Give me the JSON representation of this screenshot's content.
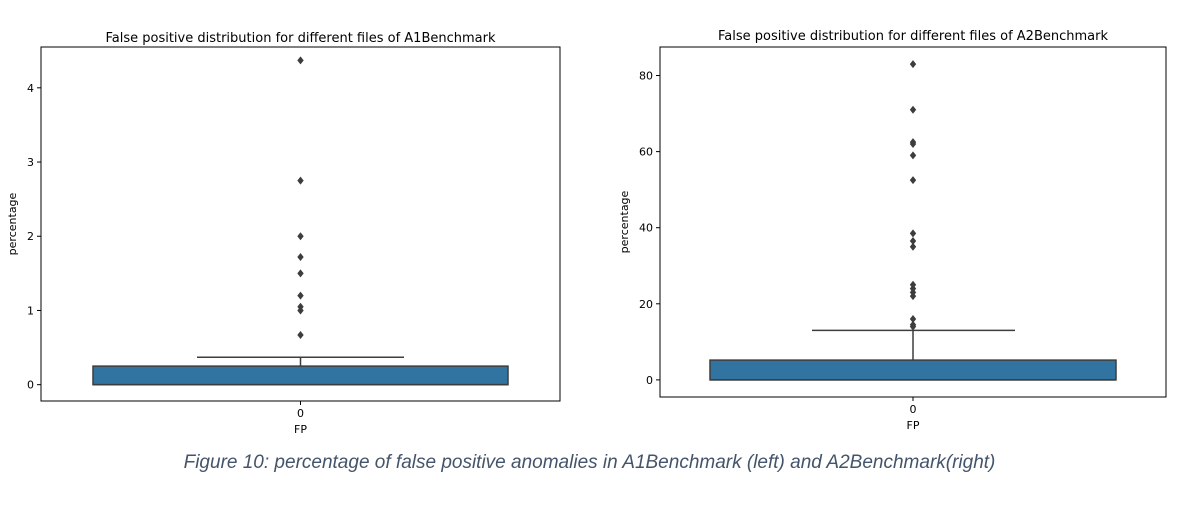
{
  "caption": "Figure 10: percentage of false positive anomalies in A1Benchmark (left) and A2Benchmark(right)",
  "chart_data": [
    {
      "type": "box",
      "title": "False positive distribution for different files of A1Benchmark",
      "xlabel": "FP",
      "ylabel": "percentage",
      "categories": [
        "0"
      ],
      "ylim": [
        -0.22,
        4.55
      ],
      "yticks": [
        0,
        1,
        2,
        3,
        4
      ],
      "box": {
        "min": 0,
        "q1": 0,
        "median": 0,
        "q3": 0.25,
        "max": 0.37
      },
      "outliers": [
        4.37,
        2.75,
        2.0,
        1.72,
        1.5,
        1.2,
        1.05,
        1.0,
        0.67
      ],
      "colors": {
        "box": "#3274a1",
        "edge": "#3d3d3d",
        "flier": "#3d3d3d"
      }
    },
    {
      "type": "box",
      "title": "False positive distribution for different files of A2Benchmark",
      "xlabel": "FP",
      "ylabel": "percentage",
      "categories": [
        "0"
      ],
      "ylim": [
        -4.5,
        87.5
      ],
      "yticks": [
        0,
        20,
        40,
        60,
        80
      ],
      "box": {
        "min": 0,
        "q1": 0,
        "median": 0,
        "q3": 5.2,
        "max": 13.0
      },
      "outliers": [
        83.0,
        71.0,
        62.5,
        62.0,
        59.0,
        52.5,
        38.5,
        36.5,
        35.0,
        25.0,
        24.0,
        23.0,
        22.0,
        16.0,
        14.5,
        14.0
      ],
      "colors": {
        "box": "#3274a1",
        "edge": "#3d3d3d",
        "flier": "#3d3d3d"
      }
    }
  ]
}
